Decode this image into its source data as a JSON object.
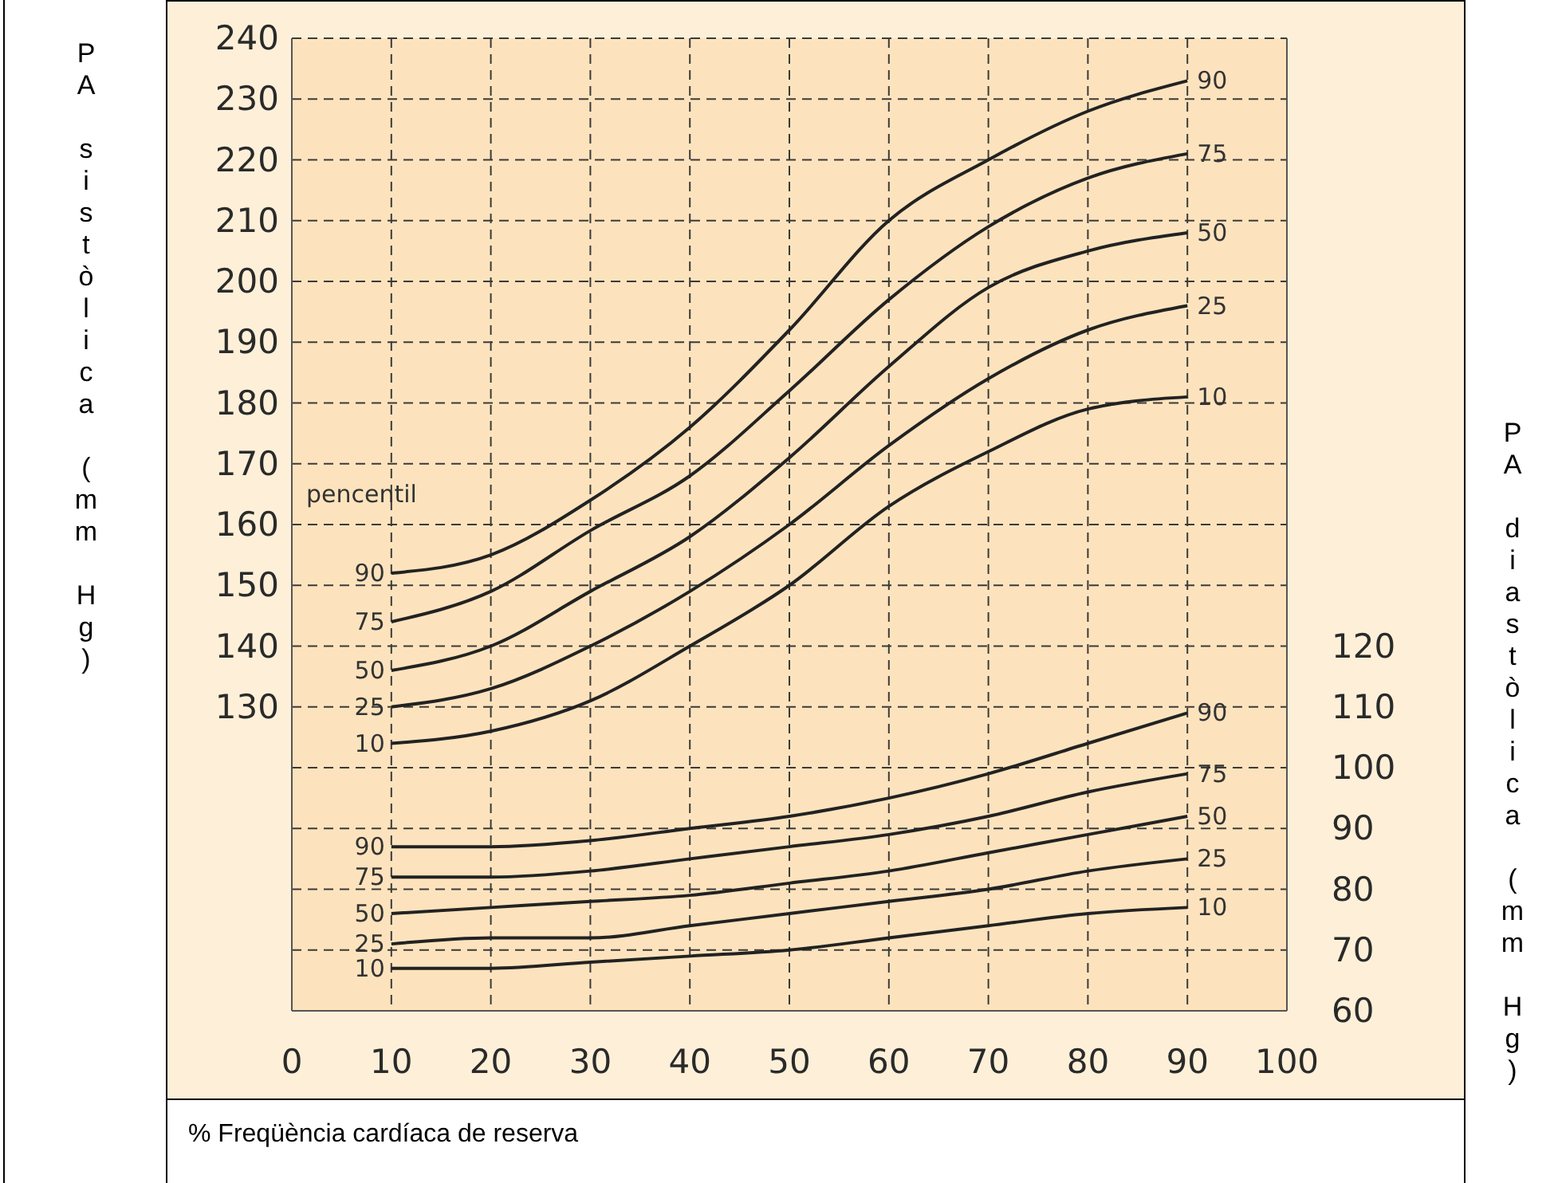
{
  "chart_data": {
    "type": "line",
    "xlabel": "% Freqüència cardíaca de reserva",
    "ylabel": "PA sistòlica (mm Hg)",
    "y2label": "PA diastòlica (mm Hg)",
    "annotations": [
      "pencentil"
    ],
    "x": [
      10,
      20,
      30,
      40,
      50,
      60,
      70,
      80,
      90
    ],
    "series": [
      {
        "name": "90",
        "color": "#222222",
        "values": [
          152,
          155,
          164,
          176,
          192,
          210,
          220,
          228,
          233
        ]
      },
      {
        "name": "75",
        "color": "#222222",
        "values": [
          144,
          149,
          159,
          168,
          182,
          197,
          209,
          217,
          221
        ]
      },
      {
        "name": "50",
        "color": "#222222",
        "values": [
          136,
          140,
          149,
          158,
          171,
          186,
          199,
          205,
          208
        ]
      },
      {
        "name": "25",
        "color": "#222222",
        "values": [
          130,
          133,
          140,
          149,
          160,
          173,
          184,
          192,
          196
        ]
      },
      {
        "name": "10",
        "color": "#222222",
        "values": [
          124,
          126,
          131,
          140,
          150,
          163,
          172,
          179,
          181
        ]
      },
      {
        "name": "90",
        "color": "#222222",
        "axis": "y2",
        "values": [
          87,
          87,
          88,
          90,
          92,
          95,
          99,
          104,
          109
        ]
      },
      {
        "name": "75",
        "color": "#222222",
        "axis": "y2",
        "values": [
          82,
          82,
          83,
          85,
          87,
          89,
          92,
          96,
          99
        ]
      },
      {
        "name": "50",
        "color": "#222222",
        "axis": "y2",
        "values": [
          76,
          77,
          78,
          79,
          81,
          83,
          86,
          89,
          92
        ]
      },
      {
        "name": "25",
        "color": "#222222",
        "axis": "y2",
        "values": [
          71,
          72,
          72,
          74,
          76,
          78,
          80,
          83,
          85
        ]
      },
      {
        "name": "10",
        "color": "#222222",
        "axis": "y2",
        "values": [
          67,
          67,
          68,
          69,
          70,
          72,
          74,
          76,
          77
        ]
      }
    ],
    "xlim": [
      0,
      100
    ],
    "xticks": [
      0,
      10,
      20,
      30,
      40,
      50,
      60,
      70,
      80,
      90,
      100
    ],
    "ylim": [
      80,
      240
    ],
    "yticks": [
      {
        "value": 90,
        "label": null
      },
      {
        "value": 100,
        "label": null
      },
      {
        "value": 110,
        "label": null
      },
      {
        "value": 120,
        "label": null
      },
      130,
      140,
      150,
      160,
      170,
      180,
      190,
      200,
      210,
      220,
      230,
      240
    ],
    "y2lim": [
      60,
      220
    ],
    "y2ticks": [
      60,
      70,
      80,
      90,
      100,
      110,
      120
    ],
    "grid": true,
    "legend": false,
    "marker": "none",
    "line_style": "solid"
  }
}
